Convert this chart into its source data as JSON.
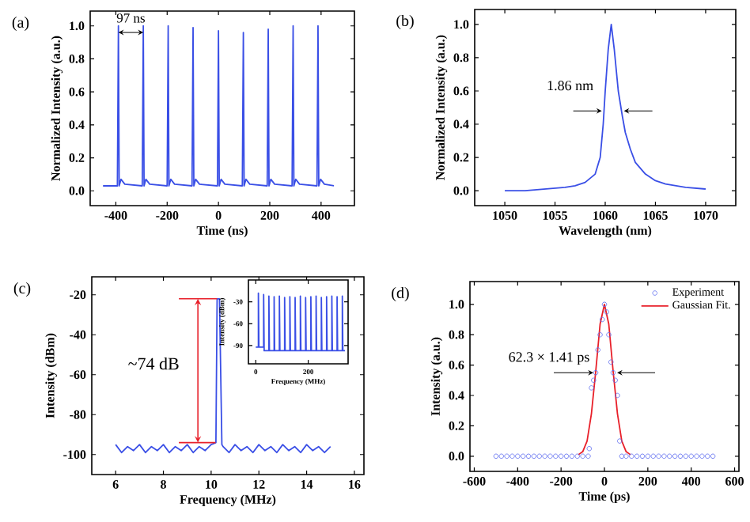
{
  "chart_data": [
    {
      "type": "line",
      "title": "(a)",
      "xlabel": "Time (ns)",
      "ylabel": "Normalized Intensity (a.u.)",
      "color": "#3a4fe6",
      "x": [
        -450,
        -394,
        -390,
        -387,
        -380,
        -365,
        -297,
        -293,
        -290,
        -283,
        -268,
        -200,
        -196,
        -193,
        -186,
        -171,
        -103,
        -99,
        -96,
        -89,
        -74,
        -4,
        0,
        3,
        10,
        25,
        93,
        97,
        100,
        107,
        122,
        190,
        194,
        197,
        204,
        219,
        287,
        291,
        294,
        301,
        316,
        384,
        388,
        391,
        398,
        413,
        450
      ],
      "values": [
        0.03,
        0.03,
        1.0,
        0.03,
        0.07,
        0.04,
        0.03,
        1.0,
        0.03,
        0.07,
        0.04,
        0.03,
        1.0,
        0.03,
        0.07,
        0.04,
        0.03,
        0.99,
        0.03,
        0.07,
        0.04,
        0.03,
        0.97,
        0.03,
        0.07,
        0.04,
        0.03,
        0.96,
        0.03,
        0.07,
        0.04,
        0.03,
        0.98,
        0.03,
        0.07,
        0.04,
        0.03,
        1.0,
        0.03,
        0.07,
        0.04,
        0.03,
        1.0,
        0.03,
        0.07,
        0.04,
        0.03
      ],
      "xlim": [
        -500,
        530
      ],
      "ylim": [
        -0.09,
        1.09
      ],
      "xticks": [
        -400,
        -200,
        0,
        200,
        400
      ],
      "yticks": [
        {
          "value": 0,
          "label": "0.0"
        },
        {
          "value": 0.2,
          "label": "0.2"
        },
        {
          "value": 0.4,
          "label": "0.4"
        },
        {
          "value": 0.6,
          "label": "0.6"
        },
        {
          "value": 0.8,
          "label": "0.8"
        },
        {
          "value": 1,
          "label": "1.0"
        }
      ],
      "annotations": [
        "97 ns"
      ]
    },
    {
      "type": "line",
      "title": "(b)",
      "xlabel": "Wavelength (nm)",
      "ylabel": "Normalized Intensity (a.u.)",
      "color": "#3a4fe6",
      "x": [
        1050,
        1052,
        1054,
        1056,
        1057,
        1058,
        1059,
        1059.5,
        1059.8,
        1060,
        1060.3,
        1060.6,
        1060.9,
        1061.3,
        1061.7,
        1062,
        1062.5,
        1063,
        1064,
        1065,
        1066,
        1067,
        1068,
        1070
      ],
      "values": [
        0.0,
        0.0,
        0.01,
        0.02,
        0.03,
        0.05,
        0.1,
        0.2,
        0.4,
        0.6,
        0.85,
        1.0,
        0.85,
        0.6,
        0.45,
        0.35,
        0.25,
        0.17,
        0.1,
        0.06,
        0.04,
        0.03,
        0.02,
        0.01
      ],
      "xlim": [
        1047,
        1073
      ],
      "ylim": [
        -0.09,
        1.09
      ],
      "xticks": [
        1050,
        1055,
        1060,
        1065,
        1070
      ],
      "yticks": [
        {
          "value": 0,
          "label": "0.0"
        },
        {
          "value": 0.2,
          "label": "0.2"
        },
        {
          "value": 0.4,
          "label": "0.4"
        },
        {
          "value": 0.6,
          "label": "0.6"
        },
        {
          "value": 0.8,
          "label": "0.8"
        },
        {
          "value": 1,
          "label": "1.0"
        }
      ],
      "annotations": [
        {
          "text": "1.86 nm",
          "x": 1060.6,
          "y": 0.48
        }
      ]
    },
    {
      "type": "line",
      "title": "(c)",
      "xlabel": "Frequency (MHz)",
      "ylabel": "Intensity (dBm)",
      "color": "#3a4fe6",
      "x": [
        6,
        6.25,
        6.5,
        6.75,
        7,
        7.25,
        7.5,
        7.75,
        8,
        8.25,
        8.5,
        8.75,
        9,
        9.25,
        9.5,
        9.75,
        10,
        10.2,
        10.25,
        10.35,
        10.45,
        10.5,
        10.75,
        11,
        11.25,
        11.5,
        11.75,
        12,
        12.25,
        12.5,
        12.75,
        13,
        13.25,
        13.5,
        13.75,
        14,
        14.25,
        14.5,
        14.75,
        15
      ],
      "values": [
        -95,
        -99,
        -96,
        -98,
        -95,
        -99,
        -96,
        -98,
        -95,
        -99,
        -96,
        -98,
        -95,
        -99,
        -96,
        -98,
        -95,
        -94,
        -22,
        -22,
        -95,
        -96,
        -99,
        -95,
        -98,
        -96,
        -99,
        -95,
        -98,
        -96,
        -99,
        -95,
        -98,
        -96,
        -99,
        -95,
        -98,
        -96,
        -99,
        -96
      ],
      "xlim": [
        5,
        16.4
      ],
      "ylim": [
        -110,
        -11
      ],
      "xticks": [
        6,
        8,
        10,
        12,
        14,
        16
      ],
      "yticks": [
        -100,
        -80,
        -60,
        -40,
        -20
      ],
      "annotations": [
        "~74 dB"
      ]
    },
    {
      "type": "line",
      "xlabel": "Frequency (MHz)",
      "ylabel": "Intensity (dBm)",
      "color": "#3a4fe6",
      "x": [
        0,
        10,
        10,
        12,
        30,
        30,
        32,
        50,
        50,
        52,
        70,
        70,
        72,
        90,
        90,
        92,
        110,
        110,
        112,
        130,
        130,
        132,
        150,
        150,
        152,
        170,
        170,
        172,
        190,
        190,
        192,
        210,
        210,
        212,
        230,
        230,
        232,
        250,
        250,
        252,
        270,
        270,
        272,
        290,
        290,
        292,
        310,
        310,
        312,
        330,
        330,
        332,
        340
      ],
      "values": [
        -92,
        -92,
        -18,
        -92,
        -92,
        -20,
        -97,
        -97,
        -22,
        -97,
        -97,
        -23,
        -97,
        -97,
        -22,
        -97,
        -97,
        -24,
        -97,
        -97,
        -23,
        -97,
        -97,
        -24,
        -97,
        -97,
        -22,
        -97,
        -97,
        -24,
        -97,
        -97,
        -23,
        -97,
        -97,
        -22,
        -97,
        -97,
        -24,
        -97,
        -97,
        -23,
        -97,
        -97,
        -22,
        -97,
        -97,
        -23,
        -97,
        -97,
        -22,
        -97,
        -97
      ],
      "xlim": [
        -28,
        352
      ],
      "ylim": [
        -115,
        0
      ],
      "xticks": [
        0,
        200
      ],
      "yticks": [
        -90,
        -60,
        -30
      ]
    },
    {
      "type": "scatter",
      "title": "(d)",
      "xlabel": "Time (ps)",
      "ylabel": "Intensity (a.u.)",
      "legend": "top right",
      "series": [
        {
          "name": "Experiment",
          "type": "scatter",
          "marker": "circle",
          "color": "#5a6af0",
          "x": [
            -500,
            -475,
            -450,
            -425,
            -400,
            -375,
            -350,
            -325,
            -300,
            -275,
            -250,
            -225,
            -200,
            -175,
            -150,
            -125,
            -100,
            -75,
            -70,
            -60,
            -50,
            -40,
            -30,
            -20,
            -10,
            0,
            10,
            20,
            30,
            40,
            50,
            60,
            70,
            80,
            100,
            125,
            150,
            175,
            200,
            225,
            250,
            275,
            300,
            325,
            350,
            375,
            400,
            425,
            450,
            475,
            500
          ],
          "values": [
            0,
            0,
            0,
            0,
            0,
            0,
            0,
            0,
            0,
            0,
            0,
            0,
            0,
            0,
            0,
            0,
            0,
            0,
            0.05,
            0.45,
            0.5,
            0.55,
            0.7,
            0.8,
            0.9,
            1.0,
            0.95,
            0.8,
            0.62,
            0.55,
            0.5,
            0.4,
            0.1,
            0,
            0,
            0,
            0,
            0,
            0,
            0,
            0,
            0,
            0,
            0,
            0,
            0,
            0,
            0,
            0,
            0,
            0
          ]
        },
        {
          "name": "Gaussian Fit.",
          "type": "line",
          "color": "#e8202a",
          "x": [
            -120,
            -100,
            -80,
            -60,
            -40,
            -20,
            0,
            20,
            40,
            60,
            80,
            100,
            120
          ],
          "values": [
            0.01,
            0.03,
            0.1,
            0.28,
            0.56,
            0.87,
            1.0,
            0.87,
            0.56,
            0.28,
            0.1,
            0.03,
            0.01
          ]
        }
      ],
      "xlim": [
        -620,
        620
      ],
      "ylim": [
        -0.1,
        1.15
      ],
      "xticks": [
        -600,
        -400,
        -200,
        0,
        200,
        400,
        600
      ],
      "yticks": [
        {
          "value": 0,
          "label": "0.0"
        },
        {
          "value": 0.2,
          "label": "0.2"
        },
        {
          "value": 0.4,
          "label": "0.4"
        },
        {
          "value": 0.6,
          "label": "0.6"
        },
        {
          "value": 0.8,
          "label": "0.8"
        },
        {
          "value": 1,
          "label": "1.0"
        }
      ],
      "annotations": [
        {
          "text": "62.3 × 1.41 ps",
          "x": 0,
          "y": 0.55
        }
      ]
    }
  ]
}
